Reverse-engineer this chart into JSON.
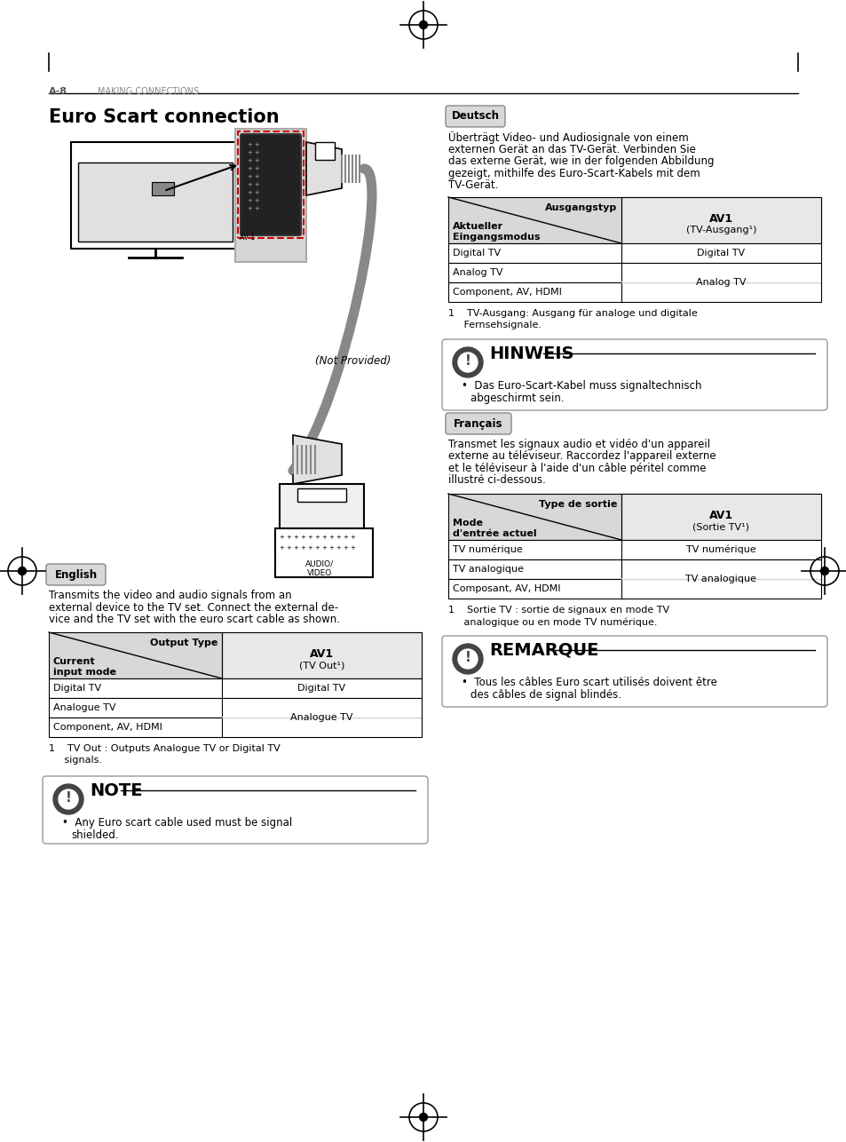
{
  "page_bg": "#ffffff",
  "header_label": "A-8",
  "header_text": "MAKING CONNECTIONS",
  "title": "Euro Scart connection",
  "deutsch_label": "Deutsch",
  "deutsch_text": [
    "Überträgt Video- und Audiosignale von einem",
    "externen Gerät an das TV-Gerät. Verbinden Sie",
    "das externe Gerät, wie in der folgenden Abbildung",
    "gezeigt, mithilfe des Euro-Scart-Kabels mit dem",
    "TV-Gerät."
  ],
  "de_table_header_left": "Ausgangstyp",
  "de_table_header_right_line1": "AV1",
  "de_table_header_right_line2": "(TV-Ausgang¹)",
  "de_table_left_label1": "Aktueller",
  "de_table_left_label2": "Eingangsmodus",
  "de_table_row1_left": "Digital TV",
  "de_table_row1_right": "Digital TV",
  "de_table_row2_left": "Analog TV",
  "de_table_row2_right": "Analog TV",
  "de_table_row3_left": "Component, AV, HDMI",
  "de_footnote_line1": "1    TV-Ausgang: Ausgang für analoge und digitale",
  "de_footnote_line2": "     Fernsehsignale.",
  "hinweis_title": "HINWEIS",
  "hinweis_bullet": "Das Euro-Scart-Kabel muss signaltechnisch",
  "hinweis_bullet2": "abgeschirmt sein.",
  "francais_label": "Français",
  "francais_text": [
    "Transmet les signaux audio et vidéo d'un appareil",
    "externe au téléviseur. Raccordez l'appareil externe",
    "et le téléviseur à l'aide d'un câble péritel comme",
    "illustré ci-dessous."
  ],
  "fr_table_header_left": "Type de sortie",
  "fr_table_header_right_line1": "AV1",
  "fr_table_header_right_line2": "(Sortie TV¹)",
  "fr_table_left_label1": "Mode",
  "fr_table_left_label2": "d'entrée actuel",
  "fr_table_row1_left": "TV numérique",
  "fr_table_row1_right": "TV numérique",
  "fr_table_row2_left": "TV analogique",
  "fr_table_row2_right": "TV analogique",
  "fr_table_row3_left": "Composant, AV, HDMI",
  "fr_footnote_line1": "1    Sortie TV : sortie de signaux en mode TV",
  "fr_footnote_line2": "     analogique ou en mode TV numérique.",
  "remarque_title": "REMARQUE",
  "remarque_bullet": "Tous les câbles Euro scart utilisés doivent être",
  "remarque_bullet2": "des câbles de signal blindés.",
  "english_label": "English",
  "english_text": [
    "Transmits the video and audio signals from an",
    "external device to the TV set. Connect the external de-",
    "vice and the TV set with the euro scart cable as shown."
  ],
  "en_table_header_left": "Output Type",
  "en_table_header_right_line1": "AV1",
  "en_table_header_right_line2": "(TV Out¹)",
  "en_table_left_label1": "Current",
  "en_table_left_label2": "input mode",
  "en_table_row1_left": "Digital TV",
  "en_table_row1_right": "Digital TV",
  "en_table_row2_left": "Analogue TV",
  "en_table_row2_right": "Analogue TV",
  "en_table_row3_left": "Component, AV, HDMI",
  "en_footnote_line1": "1    TV Out : Outputs Analogue TV or Digital TV",
  "en_footnote_line2": "     signals.",
  "note_title": "NOTE",
  "note_bullet": "Any Euro scart cable used must be signal",
  "note_bullet2": "shielded."
}
